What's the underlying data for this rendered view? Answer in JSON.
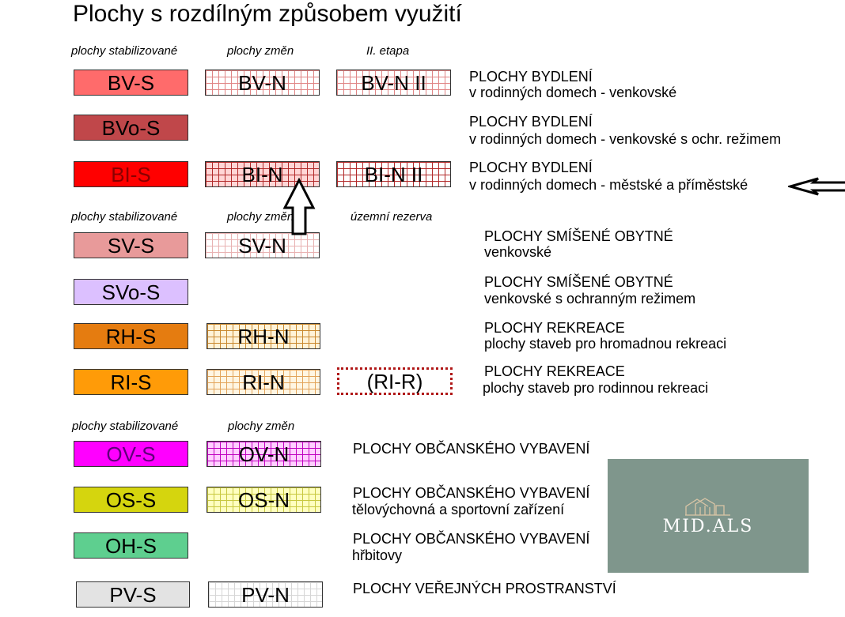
{
  "title": "Plochy s rozdílným způsobem využití",
  "headers": {
    "g1": [
      "plochy stabilizované",
      "plochy změn",
      "II. etapa"
    ],
    "g2": [
      "plochy stabilizované",
      "plochy změn",
      "územní rezerva"
    ],
    "g3": [
      "plochy stabilizované",
      "plochy změn"
    ]
  },
  "rows": [
    {
      "s": "BV-S",
      "n": "BV-N",
      "e": "BV-N II",
      "desc": [
        "PLOCHY BYDLENÍ",
        "v rodinných domech - venkovské"
      ]
    },
    {
      "s": "BVo-S",
      "desc": [
        "PLOCHY BYDLENÍ",
        "v rodinných domech - venkovské s ochr. režimem"
      ]
    },
    {
      "s": "BI-S",
      "n": "BI-N",
      "e": "BI-N II",
      "desc": [
        "PLOCHY BYDLENÍ",
        "v rodinných domech - městské a příměstské"
      ]
    },
    {
      "s": "SV-S",
      "n": "SV-N",
      "desc": [
        "PLOCHY SMÍŠENÉ OBYTNÉ",
        "venkovské"
      ]
    },
    {
      "s": "SVo-S",
      "desc": [
        "PLOCHY SMÍŠENÉ OBYTNÉ",
        "venkovské s ochranným režimem"
      ]
    },
    {
      "s": "RH-S",
      "n": "RH-N",
      "desc": [
        "PLOCHY REKREACE",
        "plochy staveb pro hromadnou rekreaci"
      ]
    },
    {
      "s": "RI-S",
      "n": "RI-N",
      "e": "(RI-R)",
      "desc": [
        "PLOCHY REKREACE",
        "plochy staveb pro rodinnou rekreaci"
      ]
    },
    {
      "s": "OV-S",
      "n": "OV-N",
      "desc": [
        "PLOCHY OBČANSKÉHO VYBAVENÍ"
      ]
    },
    {
      "s": "OS-S",
      "n": "OS-N",
      "desc": [
        "PLOCHY OBČANSKÉHO VYBAVENÍ",
        "tělovýchovná a sportovní zařízení"
      ]
    },
    {
      "s": "OH-S",
      "desc": [
        "PLOCHY OBČANSKÉHO VYBAVENÍ",
        "hřbitovy"
      ]
    },
    {
      "s": "PV-S",
      "n": "PV-N",
      "desc": [
        "PLOCHY VEŘEJNÝCH PROSTRANSTVÍ"
      ]
    }
  ],
  "colors": {
    "BV": "#ff6b6b",
    "BVo": "#c0474a",
    "BI": "#ff0000",
    "SV": "#e89a9a",
    "SVo": "#dcc0ff",
    "RH": "#e57c10",
    "RI": "#ff9b08",
    "OV": "#ff00ff",
    "OS": "#d5d50e",
    "OH": "#5ecf8f",
    "PV": "#e3e3e3"
  },
  "logo": {
    "text": "MID.ALS",
    "icon": "buildings-logo-icon"
  },
  "markers": {
    "arrow_up": "arrow-up-icon",
    "arrow_left": "arrow-left-icon"
  }
}
